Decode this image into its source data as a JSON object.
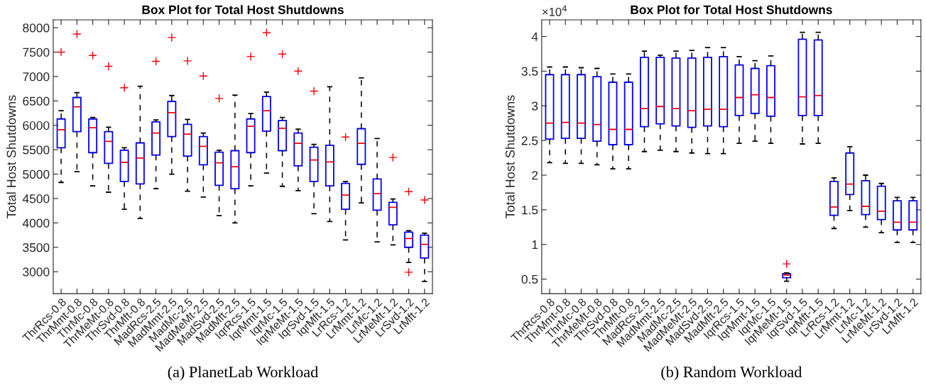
{
  "chart_data": [
    {
      "type": "box",
      "title": "Box Plot for Total Host Shutdowns",
      "ylabel": "Total Host Shutdowns",
      "categories": [
        "ThrRcs-0.8",
        "ThrMmt-0.8",
        "ThrMc-0.8",
        "ThrMeMt-0.8",
        "ThrSvd-0.8",
        "ThrMft-0.8",
        "MadRcs-2.5",
        "MadMmt-2.5",
        "MadMc-2.5",
        "MadMeMt-2.5",
        "MadSvd-2.5",
        "MadMft-2.5",
        "IqrRcs-1.5",
        "IqrMmt-1.5",
        "IqrMc-1.5",
        "IqrMeMt-1.5",
        "IqrSvd-1.5",
        "IqrMft-1.5",
        "LrRcs-1.2",
        "LrMmt-1.2",
        "LrMc-1.2",
        "LrMeMt-1.2",
        "LrSvd-1.2",
        "LrMft-1.2"
      ],
      "boxes": [
        {
          "low": 4830,
          "q1": 5540,
          "median": 5910,
          "q3": 6130,
          "high": 6300,
          "outliers": [
            7500
          ]
        },
        {
          "low": 5050,
          "q1": 5870,
          "median": 6380,
          "q3": 6570,
          "high": 6670,
          "outliers": [
            7870
          ]
        },
        {
          "low": 4760,
          "q1": 5440,
          "median": 5950,
          "q3": 6130,
          "high": 6160,
          "outliers": [
            7430
          ]
        },
        {
          "low": 4630,
          "q1": 5220,
          "median": 5670,
          "q3": 5870,
          "high": 5960,
          "outliers": [
            7210
          ]
        },
        {
          "low": 4280,
          "q1": 4850,
          "median": 5240,
          "q3": 5490,
          "high": 5540,
          "outliers": [
            6770
          ]
        },
        {
          "low": 4090,
          "q1": 4800,
          "median": 5330,
          "q3": 5640,
          "high": 6800
        },
        {
          "low": 4700,
          "q1": 5390,
          "median": 5840,
          "q3": 6070,
          "high": 6110,
          "outliers": [
            7310
          ]
        },
        {
          "low": 5000,
          "q1": 5770,
          "median": 6260,
          "q3": 6490,
          "high": 6610,
          "outliers": [
            7800
          ]
        },
        {
          "low": 4650,
          "q1": 5370,
          "median": 5820,
          "q3": 6020,
          "high": 6120,
          "outliers": [
            7320
          ]
        },
        {
          "low": 4530,
          "q1": 5190,
          "median": 5570,
          "q3": 5770,
          "high": 5840,
          "outliers": [
            7010
          ]
        },
        {
          "low": 4150,
          "q1": 4770,
          "median": 5230,
          "q3": 5450,
          "high": 5490,
          "outliers": [
            6550
          ]
        },
        {
          "low": 4000,
          "q1": 4700,
          "median": 5150,
          "q3": 5480,
          "high": 6620
        },
        {
          "low": 4760,
          "q1": 5440,
          "median": 5980,
          "q3": 6130,
          "high": 6240,
          "outliers": [
            7410
          ]
        },
        {
          "low": 5020,
          "q1": 5880,
          "median": 6300,
          "q3": 6590,
          "high": 6680,
          "outliers": [
            7900
          ]
        },
        {
          "low": 4750,
          "q1": 5480,
          "median": 5940,
          "q3": 6100,
          "high": 6160,
          "outliers": [
            7460
          ]
        },
        {
          "low": 4660,
          "q1": 5170,
          "median": 5630,
          "q3": 5840,
          "high": 5920,
          "outliers": [
            7110
          ]
        },
        {
          "low": 4190,
          "q1": 4850,
          "median": 5290,
          "q3": 5550,
          "high": 5610,
          "outliers": [
            6700
          ]
        },
        {
          "low": 4030,
          "q1": 4760,
          "median": 5250,
          "q3": 5590,
          "high": 6790
        },
        {
          "low": 3650,
          "q1": 4280,
          "median": 4570,
          "q3": 4810,
          "high": 4850,
          "outliers": [
            5760
          ]
        },
        {
          "low": 4410,
          "q1": 5200,
          "median": 5630,
          "q3": 5930,
          "high": 6970
        },
        {
          "low": 3610,
          "q1": 4260,
          "median": 4600,
          "q3": 4900,
          "high": 5730
        },
        {
          "low": 3550,
          "q1": 3960,
          "median": 4320,
          "q3": 4420,
          "high": 4490,
          "outliers": [
            5340
          ]
        },
        {
          "low": 3190,
          "q1": 3500,
          "median": 3680,
          "q3": 3810,
          "high": 3840,
          "outliers": [
            4640,
            2990
          ]
        },
        {
          "low": 2800,
          "q1": 3280,
          "median": 3560,
          "q3": 3750,
          "high": 3790,
          "outliers": [
            4470
          ]
        }
      ],
      "ylim": [
        2550,
        8160
      ],
      "yticks": [
        3000,
        3500,
        4000,
        4500,
        5000,
        5500,
        6000,
        6500,
        7000,
        7500,
        8000
      ],
      "grid": false,
      "annotations": [
        "(a) PlanetLab Workload"
      ]
    },
    {
      "type": "box",
      "title": "Box Plot for Total Host Shutdowns",
      "ylabel": "Total Host Shutdowns",
      "categories": [
        "ThrRcs-0.8",
        "ThrMmt-0.8",
        "ThrMc-0.8",
        "ThrMeMt-0.8",
        "ThrSvd-0.8",
        "ThrMft-0.8",
        "MadRcs-2.5",
        "MadMmt-2.5",
        "MadMc-2.5",
        "MadMeMt-2.5",
        "MadSvd-2.5",
        "MadMft-2.5",
        "IqrRcs-1.5",
        "IqrMmt-1.5",
        "IqrMc-1.5",
        "IqrMeMt-1.5",
        "IqrSvd-1.5",
        "IqrMft-1.5",
        "LrRcs-1.2",
        "LrMmt-1.2",
        "LrMc-1.2",
        "LrMeMt-1.2",
        "LrSvd-1.2",
        "LrMft-1.2"
      ],
      "boxes": [
        {
          "low": 2.18,
          "q1": 2.52,
          "median": 2.75,
          "q3": 3.45,
          "high": 3.56
        },
        {
          "low": 2.17,
          "q1": 2.53,
          "median": 2.76,
          "q3": 3.45,
          "high": 3.56
        },
        {
          "low": 2.17,
          "q1": 2.53,
          "median": 2.75,
          "q3": 3.45,
          "high": 3.55
        },
        {
          "low": 2.15,
          "q1": 2.49,
          "median": 2.73,
          "q3": 3.42,
          "high": 3.54
        },
        {
          "low": 2.09,
          "q1": 2.44,
          "median": 2.66,
          "q3": 3.34,
          "high": 3.46
        },
        {
          "low": 2.09,
          "q1": 2.44,
          "median": 2.66,
          "q3": 3.34,
          "high": 3.46
        },
        {
          "low": 2.34,
          "q1": 2.7,
          "median": 2.96,
          "q3": 3.7,
          "high": 3.79
        },
        {
          "low": 2.36,
          "q1": 2.74,
          "median": 2.99,
          "q3": 3.7,
          "high": 3.73
        },
        {
          "low": 2.34,
          "q1": 2.71,
          "median": 2.96,
          "q3": 3.69,
          "high": 3.79
        },
        {
          "low": 2.32,
          "q1": 2.69,
          "median": 2.93,
          "q3": 3.69,
          "high": 3.8
        },
        {
          "low": 2.31,
          "q1": 2.71,
          "median": 2.95,
          "q3": 3.7,
          "high": 3.84
        },
        {
          "low": 2.31,
          "q1": 2.7,
          "median": 2.95,
          "q3": 3.71,
          "high": 3.84
        },
        {
          "low": 2.46,
          "q1": 2.86,
          "median": 3.12,
          "q3": 3.59,
          "high": 3.71
        },
        {
          "low": 2.49,
          "q1": 2.89,
          "median": 3.16,
          "q3": 3.54,
          "high": 3.65
        },
        {
          "low": 2.46,
          "q1": 2.85,
          "median": 3.12,
          "q3": 3.58,
          "high": 3.72
        },
        {
          "low": 0.47,
          "q1": 0.52,
          "median": 0.56,
          "q3": 0.58,
          "high": 0.59,
          "outliers": [
            0.72
          ]
        },
        {
          "low": 2.45,
          "q1": 2.86,
          "median": 3.13,
          "q3": 3.96,
          "high": 4.06
        },
        {
          "low": 2.46,
          "q1": 2.86,
          "median": 3.15,
          "q3": 3.95,
          "high": 4.06
        },
        {
          "low": 1.23,
          "q1": 1.42,
          "median": 1.54,
          "q3": 1.91,
          "high": 1.96
        },
        {
          "low": 1.49,
          "q1": 1.72,
          "median": 1.87,
          "q3": 2.32,
          "high": 2.41
        },
        {
          "low": 1.25,
          "q1": 1.43,
          "median": 1.55,
          "q3": 1.92,
          "high": 2.0
        },
        {
          "low": 1.17,
          "q1": 1.36,
          "median": 1.48,
          "q3": 1.84,
          "high": 1.88
        },
        {
          "low": 1.03,
          "q1": 1.21,
          "median": 1.32,
          "q3": 1.63,
          "high": 1.68
        },
        {
          "low": 1.03,
          "q1": 1.21,
          "median": 1.32,
          "q3": 1.63,
          "high": 1.68
        }
      ],
      "ylim": [
        0.29,
        4.24
      ],
      "yticks": [
        0.5,
        1,
        1.5,
        2,
        2.5,
        3,
        3.5,
        4
      ],
      "grid": false,
      "annotations": [
        "×10$^{4}$",
        "(b) Random Workload"
      ]
    }
  ]
}
